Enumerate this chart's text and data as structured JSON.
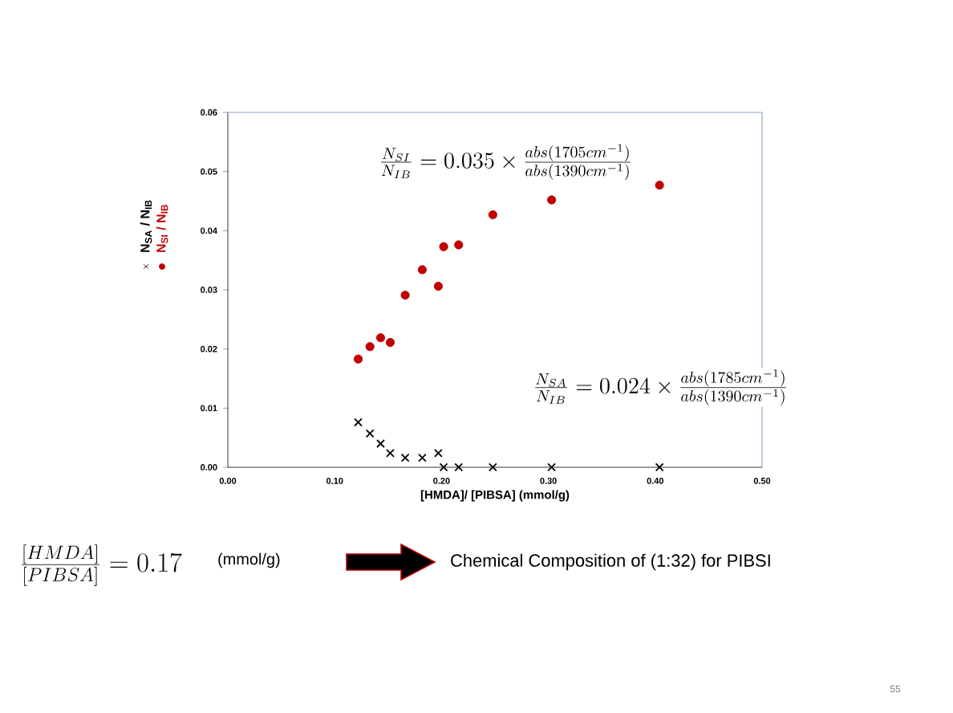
{
  "chart_data": {
    "type": "scatter",
    "xlabel": "[HMDA]/ [PIBSA] (mmol/g)",
    "xlim": [
      0,
      0.5
    ],
    "xticks": [
      {
        "value": 0,
        "label": "0.00"
      },
      {
        "value": 0.1,
        "label": "0.10"
      },
      {
        "value": 0.2,
        "label": "0.20"
      },
      {
        "value": 0.3,
        "label": "0.30"
      },
      {
        "value": 0.4,
        "label": "0.40"
      },
      {
        "value": 0.5,
        "label": "0.50"
      }
    ],
    "ylim": [
      0,
      0.06
    ],
    "yticks": [
      {
        "value": 0,
        "label": "0.00"
      },
      {
        "value": 0.01,
        "label": "0.01"
      },
      {
        "value": 0.02,
        "label": "0.02"
      },
      {
        "value": 0.03,
        "label": "0.03"
      },
      {
        "value": 0.04,
        "label": "0.04"
      },
      {
        "value": 0.05,
        "label": "0.05"
      },
      {
        "value": 0.06,
        "label": "0.06"
      }
    ],
    "legend": "left",
    "series": [
      {
        "name": "N$_{SA}$ / N$_{IB}$",
        "color": "#000000",
        "marker": "cross",
        "x": [
          0.122,
          0.133,
          0.143,
          0.152,
          0.166,
          0.182,
          0.197,
          0.202,
          0.216,
          0.248,
          0.303,
          0.404
        ],
        "values": [
          0.0076,
          0.0057,
          0.004,
          0.0024,
          0.0016,
          0.0016,
          0.0024,
          0,
          0,
          0,
          0,
          0
        ]
      },
      {
        "name": "N$_{SI}$ / N$_{IB}$",
        "color": "#c00000",
        "marker": "circle",
        "x": [
          0.122,
          0.133,
          0.143,
          0.152,
          0.166,
          0.182,
          0.197,
          0.202,
          0.216,
          0.248,
          0.303,
          0.404
        ],
        "values": [
          0.0183,
          0.0204,
          0.0219,
          0.0211,
          0.0291,
          0.0334,
          0.0306,
          0.0373,
          0.0376,
          0.0427,
          0.0452,
          0.0477
        ]
      }
    ],
    "annotations": [
      "\\frac{N_{SI}}{N_{IB}} = 0.035 \\times \\frac{abs(1705cm^{-1})}{abs(1390cm^{-1})}",
      "\\frac{N_{SA}}{N_{IB}} = 0.024 \\times \\frac{abs(1785cm^{-1})}{abs(1390cm^{-1})}",
      "\\frac{[HMDA]}{[PIBSA]} = 0.17",
      "(mmol/g)",
      "Chemical Composition of (1:32) for PIBSI",
      "55"
    ]
  }
}
